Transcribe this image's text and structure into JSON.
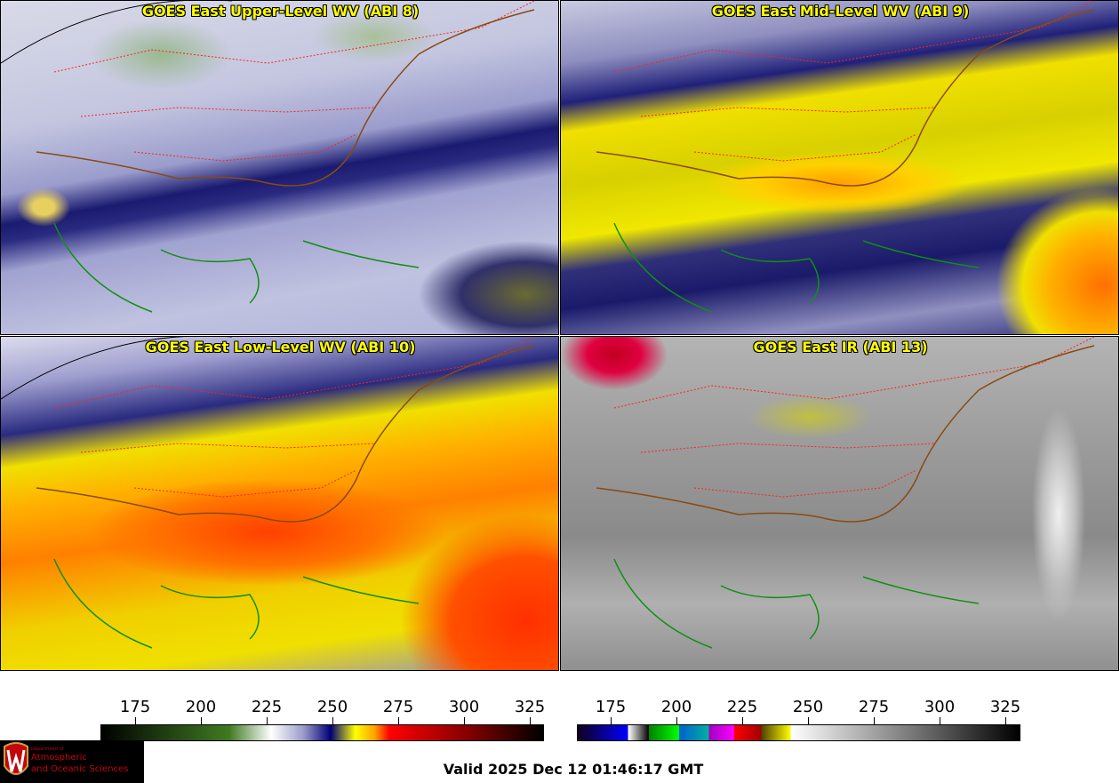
{
  "panels": [
    {
      "title": "GOES East Upper-Level WV (ABI 8)"
    },
    {
      "title": "GOES East Mid-Level WV (ABI 9)"
    },
    {
      "title": "GOES East Low-Level WV (ABI 10)"
    },
    {
      "title": "GOES East IR (ABI 13)"
    }
  ],
  "colorbars": {
    "wv": {
      "ticks": [
        "175",
        "200",
        "225",
        "250",
        "275",
        "300",
        "325"
      ]
    },
    "ir": {
      "ticks": [
        "175",
        "200",
        "225",
        "250",
        "275",
        "300",
        "325"
      ]
    }
  },
  "logo": {
    "line1": "Department of",
    "line2": "Atmospheric",
    "line3": "and Oceanic Sciences"
  },
  "valid_time": "Valid 2025 Dec 12 01:46:17 GMT",
  "colors": {
    "title": "#ffff00",
    "state_lines": "#ff2020",
    "coastlines": "#109010",
    "borders": "#8a4a10"
  }
}
